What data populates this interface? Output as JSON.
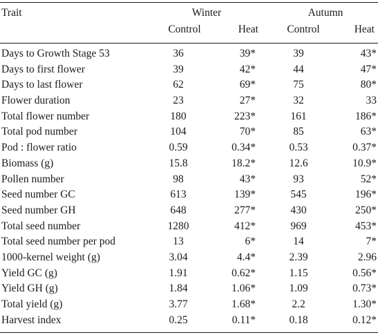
{
  "header": {
    "trait_label": "Trait",
    "winter_label": "Winter",
    "autumn_label": "Autumn",
    "winter_control": "Control",
    "winter_heat": "Heat",
    "autumn_control": "Control",
    "autumn_heat": "Heat"
  },
  "rows": [
    {
      "trait": "Days to Growth Stage 53",
      "winter_control": "36",
      "winter_heat": "39*",
      "autumn_control": "39",
      "autumn_heat": "43*"
    },
    {
      "trait": "Days to first flower",
      "winter_control": "39",
      "winter_heat": "42*",
      "autumn_control": "44",
      "autumn_heat": "47*"
    },
    {
      "trait": "Days to last flower",
      "winter_control": "62",
      "winter_heat": "69*",
      "autumn_control": "75",
      "autumn_heat": "80*"
    },
    {
      "trait": "Flower duration",
      "winter_control": "23",
      "winter_heat": "27*",
      "autumn_control": "32",
      "autumn_heat": "33"
    },
    {
      "trait": "Total flower number",
      "winter_control": "180",
      "winter_heat": "223*",
      "autumn_control": "161",
      "autumn_heat": "186*"
    },
    {
      "trait": "Total pod number",
      "winter_control": "104",
      "winter_heat": "70*",
      "autumn_control": "85",
      "autumn_heat": "63*"
    },
    {
      "trait": "Pod : flower ratio",
      "winter_control": "0.59",
      "winter_heat": "0.34*",
      "autumn_control": "0.53",
      "autumn_heat": "0.37*"
    },
    {
      "trait": "Biomass (g)",
      "winter_control": "15.8",
      "winter_heat": "18.2*",
      "autumn_control": "12.6",
      "autumn_heat": "10.9*"
    },
    {
      "trait": "Pollen number",
      "winter_control": "98",
      "winter_heat": "43*",
      "autumn_control": "93",
      "autumn_heat": "52*"
    },
    {
      "trait": "Seed number GC",
      "winter_control": "613",
      "winter_heat": "139*",
      "autumn_control": "545",
      "autumn_heat": "196*"
    },
    {
      "trait": "Seed number GH",
      "winter_control": "648",
      "winter_heat": "277*",
      "autumn_control": "430",
      "autumn_heat": "250*"
    },
    {
      "trait": "Total seed number",
      "winter_control": "1280",
      "winter_heat": "412*",
      "autumn_control": "969",
      "autumn_heat": "453*"
    },
    {
      "trait": "Total seed number per pod",
      "winter_control": "13",
      "winter_heat": "6*",
      "autumn_control": "14",
      "autumn_heat": "7*"
    },
    {
      "trait": "1000-kernel weight (g)",
      "winter_control": "3.04",
      "winter_heat": "4.4*",
      "autumn_control": "2.39",
      "autumn_heat": "2.96"
    },
    {
      "trait": "Yield GC (g)",
      "winter_control": "1.91",
      "winter_heat": "0.62*",
      "autumn_control": "1.15",
      "autumn_heat": "0.56*"
    },
    {
      "trait": "Yield GH (g)",
      "winter_control": "1.84",
      "winter_heat": "1.06*",
      "autumn_control": "1.09",
      "autumn_heat": "0.73*"
    },
    {
      "trait": "Total yield (g)",
      "winter_control": "3.77",
      "winter_heat": "1.68*",
      "autumn_control": "2.2",
      "autumn_heat": "1.30*"
    },
    {
      "trait": "Harvest index",
      "winter_control": "0.25",
      "winter_heat": "0.11*",
      "autumn_control": "0.18",
      "autumn_heat": "0.12*"
    }
  ]
}
